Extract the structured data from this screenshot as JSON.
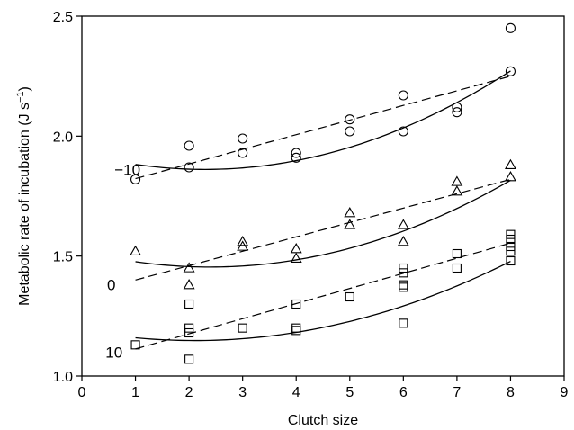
{
  "chart_data": {
    "type": "scatter",
    "xlabel": "Clutch size",
    "ylabel": "Metabolic rate of incubation (J s",
    "ylabel_superscript": "−1",
    "ylabel_close": ")",
    "xlim": [
      0,
      9
    ],
    "ylim": [
      1.0,
      2.5
    ],
    "x_ticks": [
      "0",
      "1",
      "2",
      "3",
      "4",
      "5",
      "6",
      "7",
      "8",
      "9"
    ],
    "y_ticks": [
      "1.0",
      "1.5",
      "2.0",
      "2.5"
    ],
    "grid": false,
    "legend": "none",
    "series": [
      {
        "label": "−10",
        "marker": "circle",
        "label_pos": [
          0.85,
          1.86
        ],
        "points": [
          [
            1,
            1.82
          ],
          [
            2,
            1.96
          ],
          [
            2,
            1.87
          ],
          [
            3,
            1.99
          ],
          [
            3,
            1.93
          ],
          [
            4,
            1.93
          ],
          [
            4,
            1.91
          ],
          [
            5,
            2.07
          ],
          [
            5,
            2.02
          ],
          [
            6,
            2.17
          ],
          [
            6,
            2.02
          ],
          [
            7,
            2.12
          ],
          [
            7,
            2.1
          ],
          [
            8,
            2.45
          ],
          [
            8,
            2.27
          ]
        ],
        "quadratic_fit": [
          1.9275,
          -0.0578,
          0.0126
        ],
        "linear_fit": [
          1.762,
          0.061
        ]
      },
      {
        "label": "0",
        "marker": "triangle",
        "label_pos": [
          0.55,
          1.38
        ],
        "points": [
          [
            1,
            1.52
          ],
          [
            2,
            1.45
          ],
          [
            2,
            1.38
          ],
          [
            3,
            1.56
          ],
          [
            3,
            1.54
          ],
          [
            4,
            1.53
          ],
          [
            4,
            1.49
          ],
          [
            5,
            1.68
          ],
          [
            5,
            1.63
          ],
          [
            6,
            1.63
          ],
          [
            6,
            1.56
          ],
          [
            7,
            1.81
          ],
          [
            7,
            1.77
          ],
          [
            8,
            1.88
          ],
          [
            8,
            1.83
          ]
        ],
        "quadratic_fit": [
          1.52,
          -0.055,
          0.0115
        ],
        "linear_fit": [
          1.34,
          0.06
        ]
      },
      {
        "label": "10",
        "marker": "square",
        "label_pos": [
          0.6,
          1.1
        ],
        "points": [
          [
            1,
            1.13
          ],
          [
            2,
            1.3
          ],
          [
            2,
            1.2
          ],
          [
            2,
            1.18
          ],
          [
            2,
            1.07
          ],
          [
            3,
            1.2
          ],
          [
            4,
            1.3
          ],
          [
            4,
            1.2
          ],
          [
            4,
            1.19
          ],
          [
            5,
            1.33
          ],
          [
            6,
            1.45
          ],
          [
            6,
            1.43
          ],
          [
            6,
            1.38
          ],
          [
            6,
            1.37
          ],
          [
            6,
            1.22
          ],
          [
            7,
            1.51
          ],
          [
            7,
            1.45
          ],
          [
            8,
            1.59
          ],
          [
            8,
            1.57
          ],
          [
            8,
            1.54
          ],
          [
            8,
            1.52
          ],
          [
            8,
            1.48
          ]
        ],
        "quadratic_fit": [
          1.19,
          -0.04,
          0.0095
        ],
        "linear_fit": [
          1.05,
          0.063
        ]
      }
    ]
  }
}
